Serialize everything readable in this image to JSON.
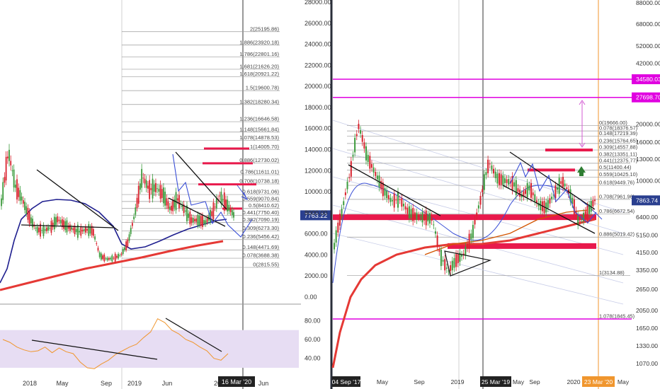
{
  "colors": {
    "up": "#3d9b3d",
    "down": "#d9232e",
    "ma_blue": "#1f1f8f",
    "ma_red": "#e53935",
    "trend": "#111111",
    "fib_label": "#444444",
    "rsi": "#f0962e",
    "rsi_band": "#e7ddf3",
    "magenta": "#e000e0",
    "pink_zone": "#e8194b",
    "arrow_green": "#2e7d32",
    "price_box": "#2a3f8f"
  },
  "left_chart": {
    "price_axis_labels": [
      "28000.00",
      "26000.00",
      "24000.00",
      "22000.00",
      "20000.00",
      "18000.00",
      "16000.00",
      "14000.00",
      "12000.00",
      "10000.00",
      "8000.00",
      "6000.00",
      "4000.00",
      "2000.00",
      "0.00"
    ],
    "fib_levels": [
      {
        "ratio": 2,
        "price": 25195.86,
        "label": "2(25195.86)"
      },
      {
        "ratio": 1.886,
        "price": 23920.18,
        "label": "1.886(23920.18)"
      },
      {
        "ratio": 1.786,
        "price": 22801.16,
        "label": "1.786(22801.16)"
      },
      {
        "ratio": 1.681,
        "price": 21626.2,
        "label": "1.681(21626.20)"
      },
      {
        "ratio": 1.618,
        "price": 20921.22,
        "label": "1.618(20921.22)"
      },
      {
        "ratio": 1.5,
        "price": 19600.78,
        "label": "1.5(19600.78)"
      },
      {
        "ratio": 1.382,
        "price": 18280.34,
        "label": "1.382(18280.34)"
      },
      {
        "ratio": 1.236,
        "price": 16646.58,
        "label": "1.236(16646.58)"
      },
      {
        "ratio": 1.148,
        "price": 15661.84,
        "label": "1.148(15661.84)"
      },
      {
        "ratio": 1.078,
        "price": 14878.53,
        "label": "1.078(14878.53)"
      },
      {
        "ratio": 1,
        "price": 14005.7,
        "label": "1(14005.70)"
      },
      {
        "ratio": 0.886,
        "price": 12730.02,
        "label": "0.886(12730.02)"
      },
      {
        "ratio": 0.786,
        "price": 11611.01,
        "label": "0.786(11611.01)"
      },
      {
        "ratio": 0.708,
        "price": 10738.18,
        "label": "0.708(10738.18)"
      },
      {
        "ratio": 0.618,
        "price": 9731.06,
        "label": "0.618(9731.06)"
      },
      {
        "ratio": 0.559,
        "price": 9070.84,
        "label": "0.559(9070.84)"
      },
      {
        "ratio": 0.5,
        "price": 8410.62,
        "label": "0.5(8410.62)"
      },
      {
        "ratio": 0.441,
        "price": 7750.4,
        "label": "0.441(7750.40)"
      },
      {
        "ratio": 0.382,
        "price": 7090.19,
        "label": "0.382(7090.19)"
      },
      {
        "ratio": 0.309,
        "price": 6273.3,
        "label": "0.309(6273.30)"
      },
      {
        "ratio": 0.236,
        "price": 5456.42,
        "label": "0.236(5456.42)"
      },
      {
        "ratio": 0.148,
        "price": 4471.69,
        "label": "0.148(4471.69)"
      },
      {
        "ratio": 0.078,
        "price": 3688.38,
        "label": "0.078(3688.38)"
      },
      {
        "ratio": 0,
        "price": 2815.55,
        "label": "0(2815.55)"
      }
    ],
    "current_price_label": "7763.22",
    "time_labels": [
      "2018",
      "May",
      "Sep",
      "2019",
      "Jun",
      "2020",
      "Jun"
    ],
    "cursor_date_label": "16 Mar '20",
    "resistance_zones": [
      14100,
      12700,
      10700,
      8400
    ],
    "rsi_axis_labels": [
      "80.00",
      "60.00",
      "40.00"
    ],
    "rsi_band": [
      30,
      70
    ]
  },
  "right_chart": {
    "price_axis_labels": [
      "88000.00",
      "68000.00",
      "52000.00",
      "42000.00",
      "34580.03",
      "27698.70",
      "20000.00",
      "16000.00",
      "13000.00",
      "10000.00",
      "7863.74",
      "6400.00",
      "5150.00",
      "4150.00",
      "3350.00",
      "2650.00",
      "2050.00",
      "1650.00",
      "1330.00",
      "1070.00"
    ],
    "highlighted_prices": [
      {
        "price": 34580.03,
        "label": "34580.03"
      },
      {
        "price": 27698.7,
        "label": "27698.70"
      }
    ],
    "current_price_label": "7863.74",
    "fib_levels": [
      {
        "ratio": 0,
        "price": 19666.0,
        "label": "0(19666.00)"
      },
      {
        "ratio": 0.078,
        "price": 18376.57,
        "label": "0.078(18376.57)"
      },
      {
        "ratio": 0.148,
        "price": 17219.39,
        "label": "0.148(17219.39)"
      },
      {
        "ratio": 0.236,
        "price": 15764.65,
        "label": "0.236(15764.65)"
      },
      {
        "ratio": 0.309,
        "price": 14557.88,
        "label": "0.309(14557.88)"
      },
      {
        "ratio": 0.382,
        "price": 13351.11,
        "label": "0.382(13351.11)"
      },
      {
        "ratio": 0.441,
        "price": 12375.77,
        "label": "0.441(12375.77)"
      },
      {
        "ratio": 0.5,
        "price": 11400.44,
        "label": "0.5(11400.44)"
      },
      {
        "ratio": 0.559,
        "price": 10425.1,
        "label": "0.559(10425.10)"
      },
      {
        "ratio": 0.618,
        "price": 9449.76,
        "label": "0.618(9449.76)"
      },
      {
        "ratio": 0.708,
        "price": 7961.96,
        "label": "0.708(7961.96)"
      },
      {
        "ratio": 0.786,
        "price": 6672.54,
        "label": "0.786(6672.54)"
      },
      {
        "ratio": 0.886,
        "price": 5019.42,
        "label": "0.886(5019.42)"
      },
      {
        "ratio": 1,
        "price": 3134.88,
        "label": "1(3134.88)"
      },
      {
        "ratio": 1.078,
        "price": 1845.45,
        "label": "1.078(1845.45)"
      }
    ],
    "time_labels": [
      "04 Sep '17",
      "May",
      "Sep",
      "2019",
      "25 Mar '19",
      "May",
      "Sep",
      "2020",
      "23 Mar '20",
      "May"
    ],
    "resistance_zones": [
      14557.88,
      11400.44
    ],
    "support_zones": [
      6400,
      4500
    ]
  },
  "chart_data": [
    {
      "type": "line",
      "title": "",
      "series": [
        {
          "values": [
            9000,
            13800,
            10500,
            9200,
            7500,
            6400,
            6300,
            6600,
            7400,
            6800,
            6500,
            6200,
            6400,
            6300,
            3900,
            3600,
            3700,
            4000,
            5200,
            8000,
            11500,
            10200,
            10400,
            9700,
            8300,
            9300,
            8300,
            7300,
            7300,
            7100,
            8000,
            9600,
            8800,
            7800
          ]
        }
      ],
      "ylim": [
        0,
        28000
      ]
    },
    {
      "type": "line",
      "title": "",
      "series": [
        {
          "values": [
            4500,
            7000,
            11000,
            19500,
            13500,
            11000,
            9000,
            7800,
            8000,
            6900,
            6500,
            6400,
            6300,
            4000,
            3300,
            3800,
            4100,
            5300,
            8000,
            12500,
            10300,
            10000,
            9700,
            8300,
            9200,
            7500,
            7200,
            8500,
            10000,
            8400,
            6000,
            6700,
            7863
          ]
        }
      ]
    },
    {
      "type": "line",
      "title": "",
      "series": [
        {
          "values": [
            60,
            57,
            52,
            49,
            47,
            48,
            52,
            46,
            51,
            47,
            45,
            36,
            30,
            29,
            34,
            38,
            44,
            48,
            52,
            55,
            62,
            68,
            82,
            78,
            70,
            66,
            60,
            57,
            52,
            48,
            40,
            38,
            45
          ]
        }
      ],
      "ylim": [
        30,
        90
      ]
    }
  ]
}
